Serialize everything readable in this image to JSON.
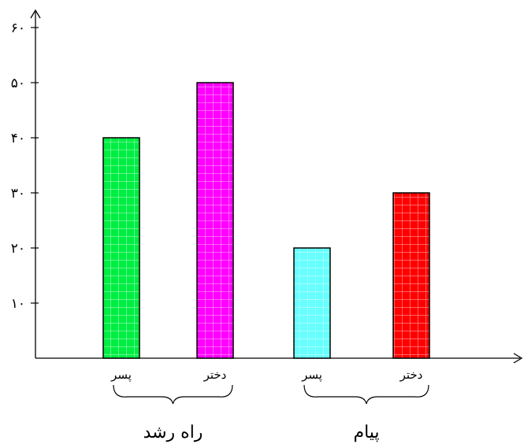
{
  "chart_data": {
    "type": "bar",
    "title": "",
    "xlabel": "",
    "ylabel": "",
    "ylim": [
      0,
      60
    ],
    "yticks": [
      10,
      20,
      30,
      40,
      50,
      60
    ],
    "ytick_labels": [
      "۱۰",
      "۲۰",
      "۳۰",
      "۴۰",
      "۵۰",
      "۶۰"
    ],
    "grid": false,
    "legend": "none",
    "groups": [
      {
        "name": "راه رشد",
        "categories": [
          {
            "label": "پسر",
            "value": 40,
            "color": "#00ee44"
          },
          {
            "label": "دختر",
            "value": 50,
            "color": "#ff00ff"
          }
        ]
      },
      {
        "name": "پیام",
        "categories": [
          {
            "label": "پسر",
            "value": 20,
            "color": "#66ffff"
          },
          {
            "label": "دختر",
            "value": 30,
            "color": "#ff0000"
          }
        ]
      }
    ]
  }
}
